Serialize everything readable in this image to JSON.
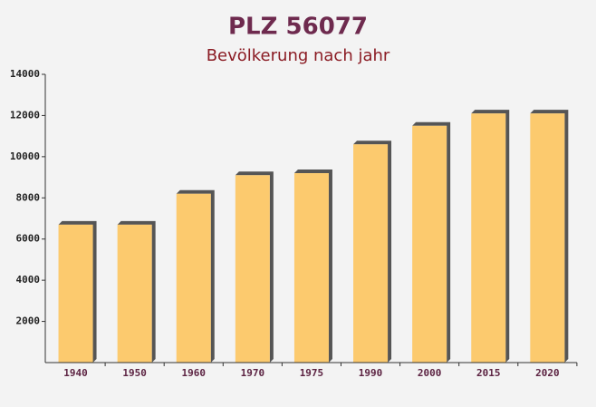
{
  "chart_data": {
    "type": "bar",
    "title": "PLZ 56077",
    "subtitle": "Bevölkerung nach jahr",
    "categories": [
      "1940",
      "1950",
      "1960",
      "1970",
      "1975",
      "1990",
      "2000",
      "2015",
      "2020"
    ],
    "values": [
      6700,
      6700,
      8200,
      9100,
      9200,
      10600,
      11500,
      12100,
      12100
    ],
    "color": "#fdc55f",
    "ylim": [
      0,
      14000
    ],
    "yticks": [
      2000,
      4000,
      6000,
      8000,
      10000,
      12000,
      14000
    ]
  }
}
